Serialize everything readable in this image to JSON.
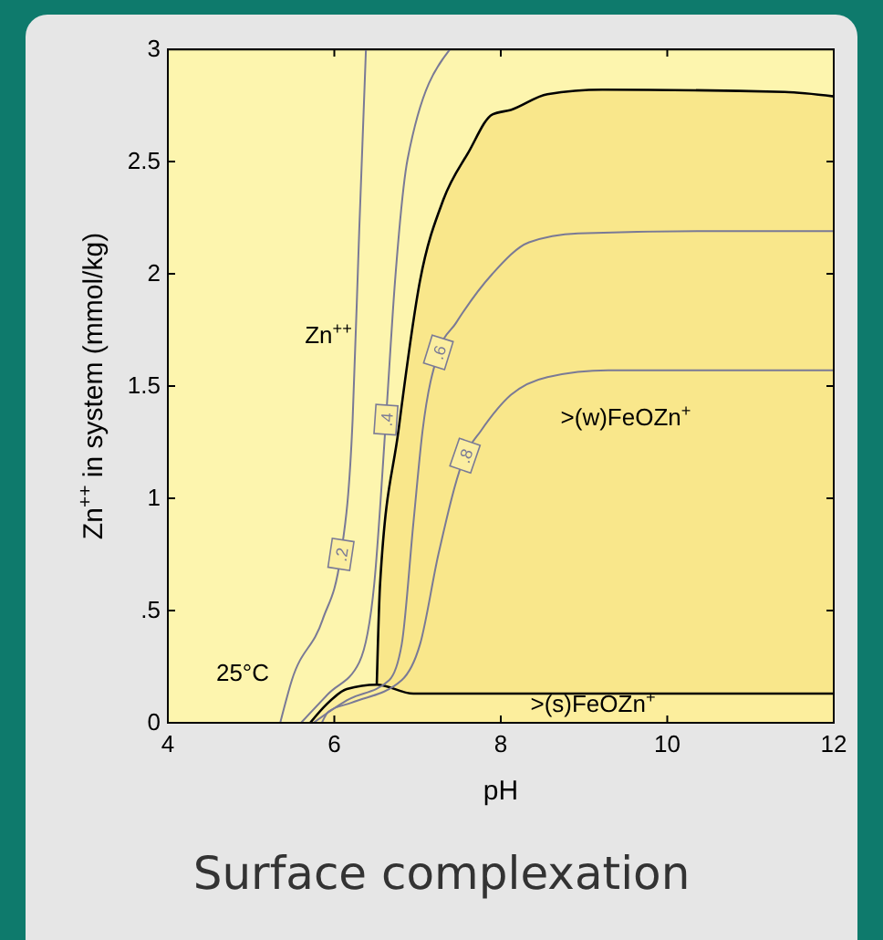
{
  "chart_data": {
    "type": "line",
    "title": "Surface complexation",
    "xlabel": "pH",
    "ylabel": "Zn$^{++}$ in system (mmol/kg)",
    "xlim": [
      4,
      12
    ],
    "ylim": [
      0,
      3
    ],
    "xticks": [
      4,
      6,
      8,
      10,
      12
    ],
    "yticks": [
      0,
      {
        "value": 0.5,
        "label": ".5"
      },
      1,
      1.5,
      2,
      2.5,
      3
    ],
    "series": [
      {
        "type": "area",
        "color": "#fdf5ae",
        "x": [
          4,
          12
        ],
        "values": [
          3,
          3
        ]
      },
      {
        "type": "area",
        "color": "#f9e78b",
        "x": [
          6.51,
          6.55,
          6.77,
          7.03,
          7.31,
          7.61,
          7.9,
          8.12,
          8.56,
          9.22,
          11.41,
          12
        ],
        "values": [
          0.17,
          0.62,
          1.3,
          1.97,
          2.33,
          2.54,
          2.71,
          2.73,
          2.8,
          2.82,
          2.81,
          2.79
        ]
      },
      {
        "type": "area",
        "color": "#fcee9d",
        "x": [
          5.71,
          5.9,
          6.15,
          6.51,
          6.95,
          12
        ],
        "values": [
          0,
          0.08,
          0.15,
          0.17,
          0.13,
          0.13
        ]
      },
      {
        "name": ".2",
        "color": "#7a7a96",
        "x": [
          5.35,
          5.49,
          5.86,
          6.08,
          6.22,
          6.3,
          6.38
        ],
        "values": [
          0,
          0.19,
          0.46,
          0.75,
          1.35,
          2.2,
          3
        ]
      },
      {
        "name": ".4",
        "color": "#7a7a96",
        "x": [
          5.6,
          5.93,
          6.3,
          6.48,
          6.62,
          6.73,
          6.88,
          7.39
        ],
        "values": [
          0,
          0.13,
          0.27,
          0.62,
          1.35,
          1.97,
          2.51,
          3
        ]
      },
      {
        "name": ".6",
        "color": "#7a7a96",
        "x": [
          5.75,
          6.15,
          6.66,
          6.81,
          6.95,
          7.06,
          7.25,
          7.46,
          7.9,
          8.34,
          8.93,
          10.38,
          12
        ],
        "values": [
          0,
          0.1,
          0.19,
          0.35,
          0.89,
          1.3,
          1.65,
          1.78,
          2.0,
          2.14,
          2.18,
          2.19,
          2.19
        ]
      },
      {
        "name": ".8",
        "color": "#7a7a96",
        "x": [
          5.85,
          5.93,
          6.21,
          6.81,
          7.03,
          7.25,
          7.57,
          7.76,
          8.12,
          8.56,
          9.29,
          12
        ],
        "values": [
          0,
          0.05,
          0.09,
          0.19,
          0.35,
          0.75,
          1.19,
          1.3,
          1.46,
          1.54,
          1.57,
          1.57
        ]
      }
    ],
    "annotations": [
      "Zn$^{++}$",
      ">(w)FeOZn$^{+}$",
      ">(s)FeOZn$^{+}$",
      "25°C"
    ]
  }
}
